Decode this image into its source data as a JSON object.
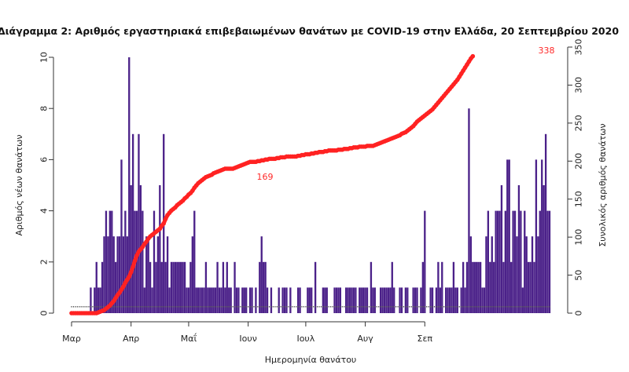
{
  "chart_data": {
    "type": "bar",
    "title": "Διάγραμμα 2: Αριθμός εργαστηριακά επιβεβαιωμένων θανάτων με COVID-19 στην Ελλάδα, 20 Σεπτεμβρίου 2020",
    "xlabel": "Ημερομηνία θανάτου",
    "ylabel": "Αριθμός νέων θανάτων",
    "y2label": "Συνολικός αριθμός θανάτων",
    "x_tick_labels": [
      "Μαρ",
      "Απρ",
      "Μαΐ",
      "Ιουν",
      "Ιουλ",
      "Αυγ",
      "Σεπ"
    ],
    "ylim": [
      0,
      10
    ],
    "y_ticks": [
      0,
      2,
      4,
      6,
      8,
      10
    ],
    "y2lim": [
      0,
      350
    ],
    "y2_ticks": [
      0,
      50,
      100,
      150,
      200,
      250,
      300,
      350
    ],
    "series": [
      {
        "values": [
          0,
          0,
          0,
          0,
          0,
          0,
          0,
          0,
          0,
          0,
          1,
          0,
          1,
          2,
          1,
          1,
          2,
          3,
          4,
          3,
          4,
          4,
          3,
          2,
          3,
          3,
          6,
          3,
          4,
          3,
          10,
          5,
          7,
          4,
          4,
          7,
          5,
          4,
          1,
          3,
          3,
          2,
          1,
          4,
          2,
          3,
          5,
          2,
          7,
          2,
          3,
          1,
          2,
          2,
          2,
          2,
          2,
          2,
          2,
          2,
          1,
          1,
          2,
          3,
          4,
          1,
          1,
          1,
          1,
          1,
          2,
          1,
          1,
          1,
          1,
          1,
          2,
          1,
          1,
          2,
          1,
          2,
          1,
          1,
          0,
          2,
          1,
          1,
          0,
          1,
          1,
          1,
          0,
          1,
          1,
          0,
          1,
          0,
          2,
          3,
          2,
          2,
          1,
          0,
          1,
          0,
          0,
          0,
          1,
          0,
          1,
          1,
          1,
          0,
          1,
          0,
          0,
          0,
          1,
          1,
          0,
          0,
          0,
          1,
          1,
          1,
          0,
          2,
          0,
          0,
          0,
          1,
          1,
          1,
          0,
          0,
          0,
          1,
          1,
          1,
          1,
          0,
          0,
          1,
          1,
          1,
          1,
          1,
          1,
          0,
          1,
          1,
          1,
          1,
          1,
          0,
          2,
          1,
          1,
          0,
          0,
          1,
          1,
          1,
          1,
          1,
          1,
          2,
          1,
          0,
          0,
          1,
          1,
          0,
          1,
          1,
          0,
          0,
          1,
          1,
          1,
          0,
          1,
          2,
          4,
          0,
          0,
          1,
          1,
          0,
          1,
          2,
          1,
          2,
          0,
          1,
          1,
          1,
          1,
          2,
          1,
          1,
          0,
          1,
          2,
          1,
          2,
          8,
          3,
          2,
          2,
          2,
          2,
          2,
          1,
          1,
          3,
          4,
          2,
          3,
          2,
          4,
          4,
          4,
          5,
          2,
          4,
          6,
          6,
          2,
          4,
          4,
          3,
          5,
          4,
          1,
          4,
          3,
          2,
          2,
          3,
          2,
          6,
          3,
          4,
          6,
          5,
          7,
          4,
          4
        ]
      },
      {
        "values": [
          0,
          0,
          0,
          0,
          0,
          0,
          0,
          0,
          0,
          0,
          0,
          0,
          0,
          0,
          1,
          2,
          3,
          4,
          6,
          8,
          10,
          13,
          16,
          20,
          24,
          27,
          31,
          35,
          40,
          44,
          48,
          54,
          61,
          69,
          76,
          81,
          84,
          87,
          91,
          94,
          98,
          101,
          103,
          105,
          107,
          109,
          111,
          115,
          118,
          124,
          129,
          132,
          135,
          137,
          139,
          142,
          144,
          146,
          148,
          151,
          153,
          156,
          158,
          161,
          165,
          168,
          171,
          173,
          175,
          177,
          179,
          180,
          181,
          182,
          184,
          185,
          186,
          187,
          188,
          189,
          190,
          190,
          190,
          190,
          190,
          191,
          192,
          193,
          194,
          195,
          196,
          197,
          198,
          199,
          199,
          199,
          199,
          200,
          200,
          201,
          201,
          202,
          202,
          203,
          203,
          203,
          203,
          204,
          204,
          205,
          205,
          205,
          206,
          206,
          206,
          206,
          206,
          206,
          207,
          207,
          208,
          208,
          209,
          209,
          209,
          210,
          210,
          211,
          211,
          212,
          212,
          212,
          213,
          213,
          214,
          214,
          214,
          214,
          214,
          215,
          215,
          215,
          216,
          216,
          216,
          217,
          217,
          218,
          218,
          218,
          219,
          219,
          219,
          219,
          220,
          220,
          220,
          220,
          221,
          222,
          223,
          224,
          225,
          226,
          227,
          228,
          229,
          230,
          231,
          232,
          233,
          234,
          236,
          237,
          238,
          240,
          242,
          244,
          246,
          249,
          252,
          254,
          256,
          258,
          260,
          262,
          264,
          266,
          268,
          271,
          274,
          277,
          280,
          283,
          286,
          289,
          292,
          295,
          298,
          301,
          304,
          307,
          311,
          315,
          319,
          323,
          327,
          331,
          335,
          338
        ]
      }
    ],
    "annotations": [
      "338",
      "169"
    ],
    "colors": {
      "bars": "#4b2189",
      "cumulative": "#ff2222",
      "dots": "#555555"
    },
    "grid": false,
    "legend": "none"
  }
}
